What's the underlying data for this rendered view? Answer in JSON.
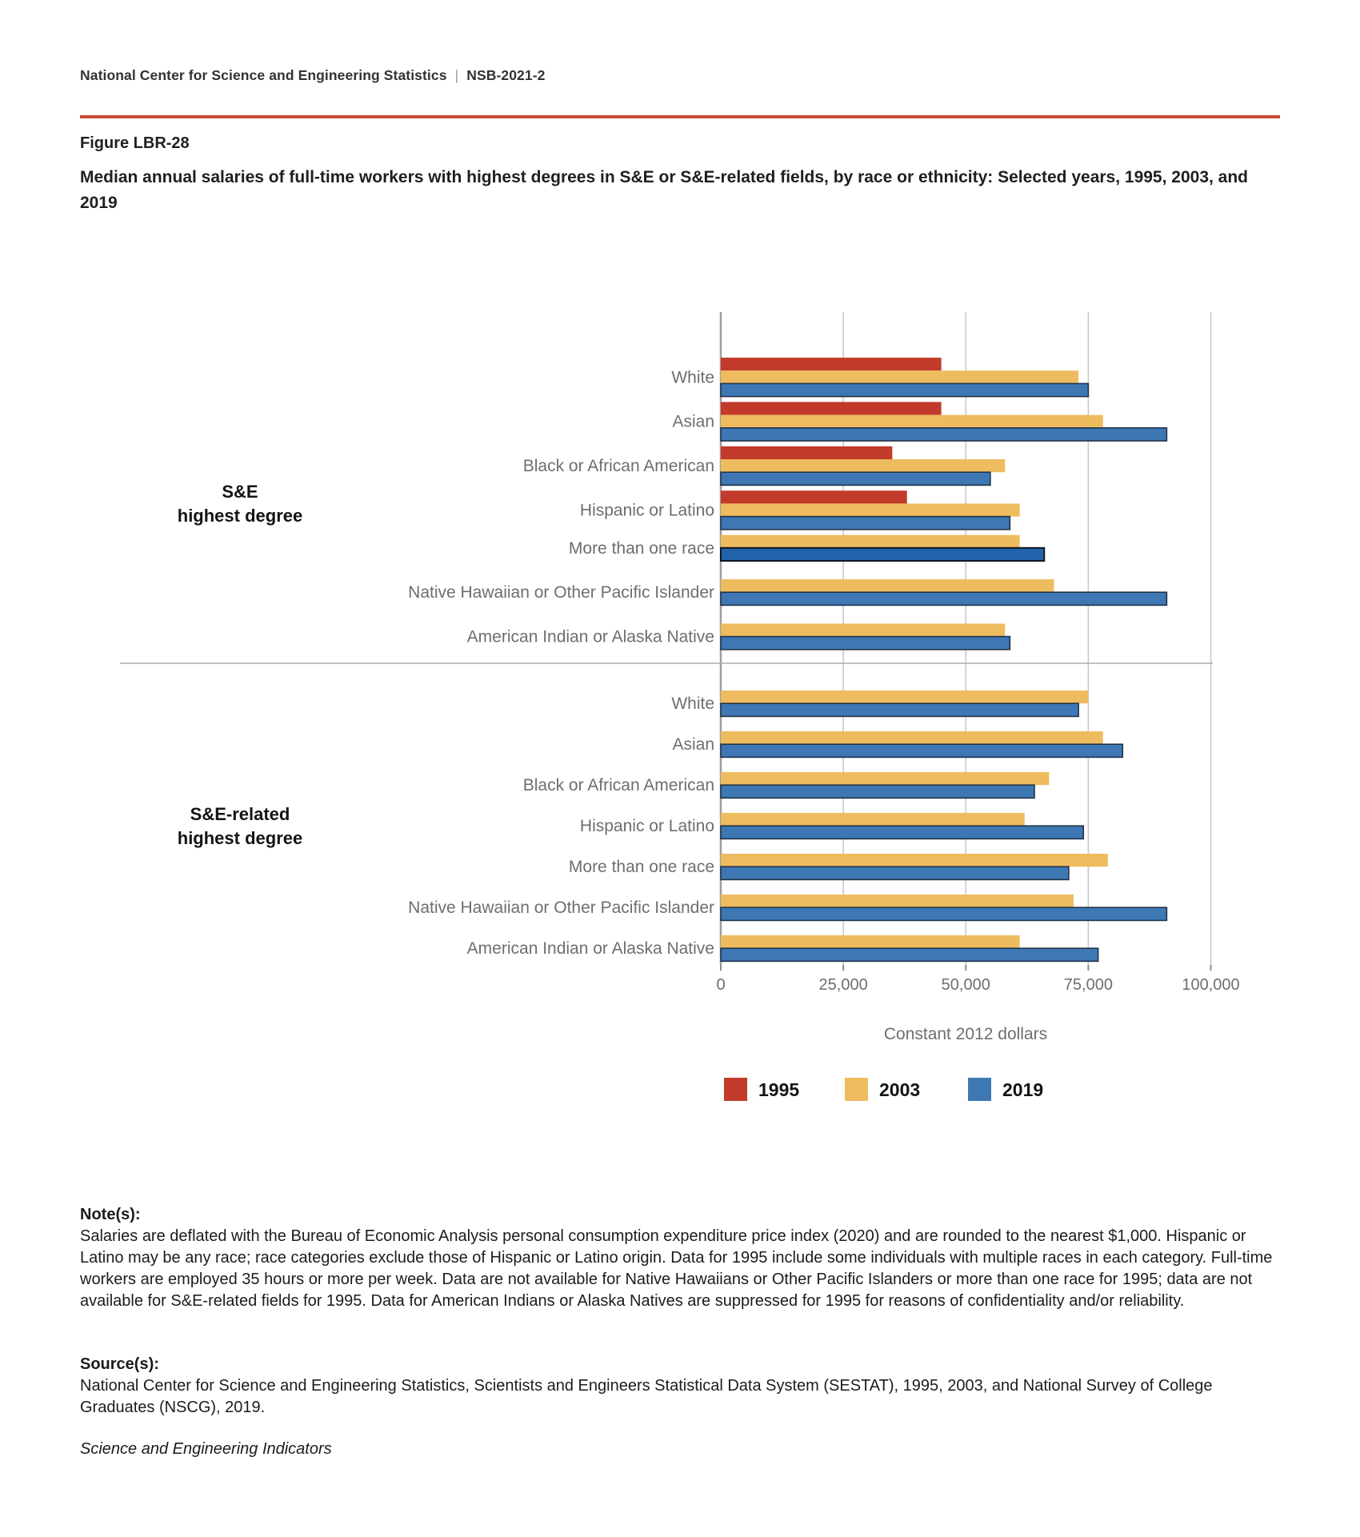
{
  "header": {
    "org": "National Center for Science and Engineering Statistics",
    "separator": "|",
    "report_id": "NSB-2021-2"
  },
  "figure": {
    "label": "Figure LBR-28",
    "title": "Median annual salaries of full-time workers with highest degrees in S&E or S&E-related fields, by race or ethnicity: Selected years, 1995, 2003, and 2019"
  },
  "chart_data": {
    "type": "bar",
    "orientation": "horizontal",
    "xlabel": "Constant 2012 dollars",
    "xlim": [
      0,
      100000
    ],
    "xticks": [
      0,
      25000,
      50000,
      75000,
      100000
    ],
    "xtick_labels": [
      "0",
      "25,000",
      "50,000",
      "75,000",
      "100,000"
    ],
    "grid": true,
    "legend_position": "bottom",
    "series_order": [
      "1995",
      "2003",
      "2019"
    ],
    "legend": [
      {
        "name": "1995",
        "color": "#c23b2a"
      },
      {
        "name": "2003",
        "color": "#eebc5f"
      },
      {
        "name": "2019",
        "color": "#3d78b4"
      }
    ],
    "panels": [
      {
        "label_lines": [
          "S&E",
          "highest degree"
        ],
        "categories": [
          "White",
          "Asian",
          "Black or African American",
          "Hispanic or Latino",
          "More than one race",
          "Native Hawaiian or Other Pacific Islander",
          "American Indian or Alaska Native"
        ],
        "series": [
          {
            "name": "1995",
            "values": [
              45000,
              45000,
              35000,
              38000,
              null,
              null,
              null
            ]
          },
          {
            "name": "2003",
            "values": [
              73000,
              78000,
              58000,
              61000,
              61000,
              68000,
              58000
            ]
          },
          {
            "name": "2019",
            "values": [
              75000,
              91000,
              55000,
              59000,
              66000,
              91000,
              59000
            ]
          }
        ]
      },
      {
        "label_lines": [
          "S&E-related",
          "highest degree"
        ],
        "categories": [
          "White",
          "Asian",
          "Black or African American",
          "Hispanic or Latino",
          "More than one race",
          "Native Hawaiian or Other Pacific Islander",
          "American Indian or Alaska Native"
        ],
        "series": [
          {
            "name": "2003",
            "values": [
              75000,
              78000,
              67000,
              62000,
              79000,
              72000,
              61000
            ]
          },
          {
            "name": "2019",
            "values": [
              73000,
              82000,
              64000,
              74000,
              71000,
              91000,
              77000
            ]
          }
        ]
      }
    ],
    "highlight": {
      "panel": 0,
      "category_index": 4,
      "series": "2019",
      "color": "#2263ac"
    }
  },
  "notes": {
    "heading": "Note(s):",
    "text": "Salaries are deflated with the Bureau of Economic Analysis personal consumption expenditure price index (2020) and are rounded to the nearest $1,000. Hispanic or Latino may be any race; race categories exclude those of Hispanic or Latino origin. Data for 1995 include some individuals with multiple races in each category. Full-time workers are employed 35 hours or more per week. Data are not available for Native Hawaiians or Other Pacific Islanders or more than one race for 1995; data are not available for S&E-related fields for 1995. Data for American Indians or Alaska Natives are suppressed for 1995 for reasons of confidentiality and/or reliability."
  },
  "sources": {
    "heading": "Source(s):",
    "text": "National Center for Science and Engineering Statistics, Scientists and Engineers Statistical Data System (SESTAT), 1995, 2003, and National Survey of College Graduates (NSCG), 2019."
  },
  "footer": {
    "publication": "Science and Engineering Indicators"
  },
  "colors": {
    "accent_rule": "#c84a33",
    "series_1995": "#c23b2a",
    "series_2003": "#eebc5f",
    "series_2019": "#3d78b4",
    "highlight_2019": "#2263ac",
    "gridline": "#c9c9c9",
    "axis": "#9e9e9e",
    "muted_text": "#6e6e6e"
  }
}
